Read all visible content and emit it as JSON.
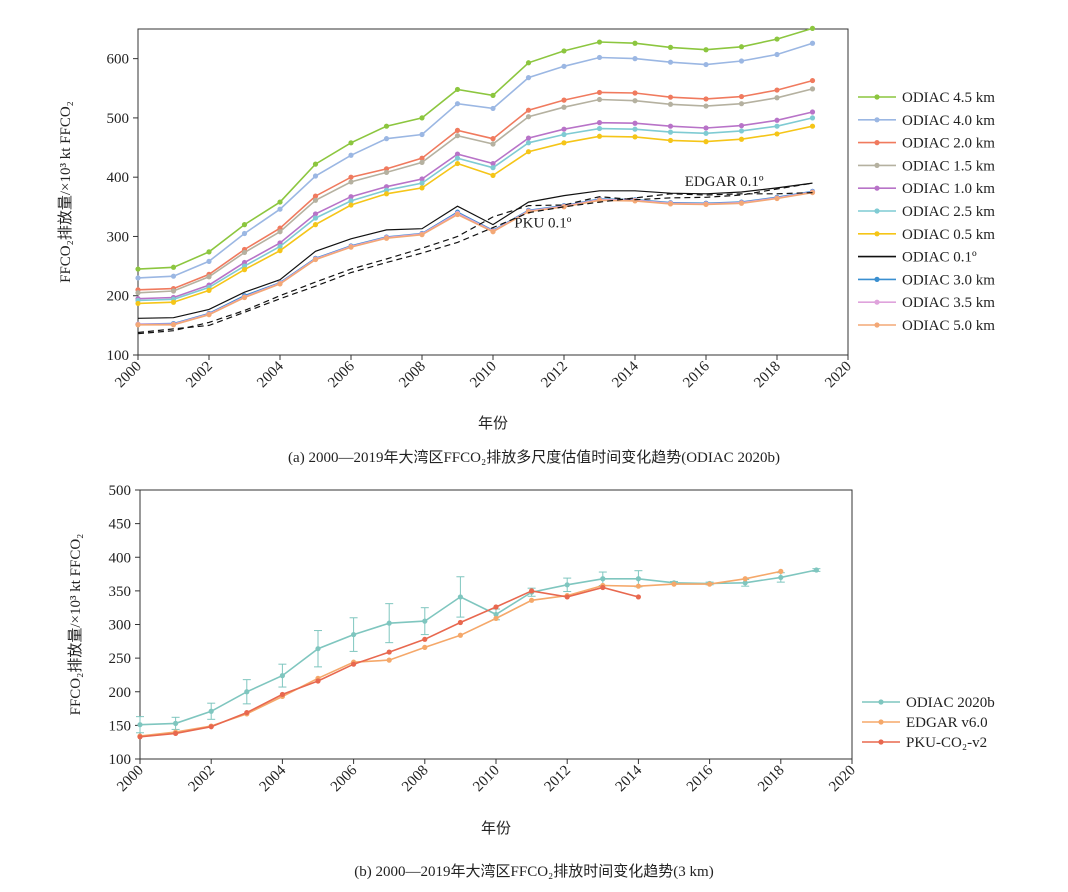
{
  "captions": {
    "a": "(a) 2000—2019年大湾区FFCO₂排放多尺度估值时间变化趋势(ODIAC 2020b)",
    "b": "(b) 2000—2019年大湾区FFCO₂排放时间变化趋势(3 km)"
  },
  "chart_data": [
    {
      "type": "line",
      "xlabel": "年份",
      "ylabel": "FFCO₂排放量/×10³ kt FFCO₂",
      "xlim": [
        2000,
        2020
      ],
      "ylim": [
        100,
        650
      ],
      "xticks": [
        2000,
        2002,
        2004,
        2006,
        2008,
        2010,
        2012,
        2014,
        2016,
        2018,
        2020
      ],
      "yticks": [
        100,
        200,
        300,
        400,
        500,
        600
      ],
      "grid": false,
      "legend_position": "right",
      "annotations": [
        {
          "text": "EDGAR 0.1º",
          "x": 2015.4,
          "y": 385
        },
        {
          "text": "PKU 0.1º",
          "x": 2010.6,
          "y": 315
        }
      ],
      "x": [
        2000,
        2001,
        2002,
        2003,
        2004,
        2005,
        2006,
        2007,
        2008,
        2009,
        2010,
        2011,
        2012,
        2013,
        2014,
        2015,
        2016,
        2017,
        2018,
        2019
      ],
      "series": [
        {
          "name": "ODIAC 4.5 km",
          "color": "#8cc63f",
          "marker": true,
          "values": [
            245,
            248,
            274,
            320,
            358,
            422,
            458,
            486,
            500,
            548,
            538,
            593,
            613,
            628,
            626,
            619,
            615,
            620,
            633,
            651
          ]
        },
        {
          "name": "ODIAC 4.0 km",
          "color": "#9bb7e3",
          "marker": true,
          "values": [
            230,
            233,
            258,
            305,
            346,
            402,
            437,
            465,
            472,
            524,
            516,
            568,
            587,
            602,
            600,
            594,
            590,
            596,
            607,
            626
          ]
        },
        {
          "name": "ODIAC 2.0 km",
          "color": "#f07a5e",
          "marker": true,
          "values": [
            210,
            212,
            236,
            278,
            314,
            368,
            400,
            414,
            432,
            479,
            465,
            513,
            530,
            543,
            542,
            535,
            532,
            536,
            547,
            563
          ]
        },
        {
          "name": "ODIAC 1.5 km",
          "color": "#b5b1a0",
          "marker": true,
          "values": [
            205,
            208,
            232,
            273,
            308,
            361,
            392,
            408,
            425,
            470,
            456,
            502,
            518,
            531,
            529,
            523,
            520,
            524,
            534,
            549
          ]
        },
        {
          "name": "ODIAC 1.0 km",
          "color": "#b873c8",
          "marker": true,
          "values": [
            195,
            197,
            218,
            256,
            289,
            338,
            367,
            384,
            397,
            439,
            423,
            466,
            481,
            492,
            491,
            486,
            483,
            487,
            496,
            510
          ]
        },
        {
          "name": "ODIAC 2.5 km",
          "color": "#7fcbd3",
          "marker": true,
          "values": [
            192,
            194,
            214,
            250,
            283,
            331,
            360,
            378,
            390,
            432,
            416,
            458,
            472,
            482,
            481,
            476,
            474,
            478,
            486,
            500
          ]
        },
        {
          "name": "ODIAC 0.5 km",
          "color": "#f5c518",
          "marker": true,
          "values": [
            187,
            189,
            209,
            244,
            276,
            320,
            353,
            372,
            382,
            423,
            403,
            443,
            458,
            469,
            468,
            462,
            460,
            464,
            473,
            486
          ]
        },
        {
          "name": "ODIAC 0.1º",
          "color": "#111111",
          "marker": false,
          "values": [
            162,
            163,
            177,
            206,
            227,
            275,
            296,
            311,
            313,
            351,
            320,
            358,
            369,
            377,
            377,
            373,
            372,
            375,
            382,
            390
          ]
        },
        {
          "name": "ODIAC 3.0 km",
          "color": "#3a8fd0",
          "marker": true,
          "values": [
            152,
            153,
            170,
            200,
            222,
            263,
            284,
            299,
            305,
            341,
            310,
            344,
            352,
            363,
            362,
            357,
            356,
            358,
            366,
            376
          ]
        },
        {
          "name": "ODIAC 3.5 km",
          "color": "#dfa3dc",
          "marker": true,
          "values": [
            152,
            152,
            169,
            198,
            221,
            262,
            283,
            298,
            304,
            339,
            309,
            343,
            351,
            362,
            361,
            356,
            355,
            357,
            365,
            375
          ]
        },
        {
          "name": "ODIAC 5.0 km",
          "color": "#f3a876",
          "marker": true,
          "values": [
            151,
            151,
            168,
            197,
            220,
            261,
            282,
            297,
            303,
            337,
            308,
            342,
            350,
            361,
            360,
            355,
            354,
            356,
            364,
            374
          ]
        },
        {
          "name": "",
          "color": "#111111",
          "marker": false,
          "dashed": true,
          "values": [
            136,
            141,
            155,
            175,
            200,
            223,
            245,
            262,
            280,
            300,
            333,
            352,
            353,
            367,
            362,
            365,
            366,
            370,
            380,
            390
          ]
        },
        {
          "name": "",
          "color": "#111111",
          "marker": false,
          "dashed": true,
          "values": [
            138,
            144,
            150,
            172,
            195,
            216,
            239,
            256,
            272,
            290,
            315,
            340,
            350,
            358,
            365,
            372,
            370,
            372,
            372,
            374
          ]
        }
      ]
    },
    {
      "type": "line",
      "xlabel": "年份",
      "ylabel": "FFCO₂排放量/×10³ kt FFCO₂",
      "xlim": [
        2000,
        2020
      ],
      "ylim": [
        100,
        500
      ],
      "xticks": [
        2000,
        2002,
        2004,
        2006,
        2008,
        2010,
        2012,
        2014,
        2016,
        2018,
        2020
      ],
      "yticks": [
        100,
        150,
        200,
        250,
        300,
        350,
        400,
        450,
        500
      ],
      "grid": false,
      "legend_position": "right",
      "series": [
        {
          "name": "ODIAC 2020b",
          "color": "#7fc6bf",
          "marker": true,
          "x": [
            2000,
            2001,
            2002,
            2003,
            2004,
            2005,
            2006,
            2007,
            2008,
            2009,
            2010,
            2011,
            2012,
            2013,
            2014,
            2015,
            2016,
            2017,
            2018,
            2019
          ],
          "values": [
            151,
            153,
            171,
            200,
            224,
            264,
            285,
            302,
            305,
            341,
            315,
            348,
            359,
            368,
            368,
            362,
            361,
            362,
            370,
            381
          ],
          "error": [
            12,
            9,
            12,
            18,
            17,
            27,
            25,
            29,
            20,
            30,
            8,
            6,
            10,
            10,
            12,
            2,
            2,
            5,
            7,
            2
          ]
        },
        {
          "name": "EDGAR v6.0",
          "color": "#f5a86a",
          "marker": true,
          "x": [
            2000,
            2001,
            2002,
            2003,
            2004,
            2005,
            2006,
            2007,
            2008,
            2009,
            2010,
            2011,
            2012,
            2013,
            2014,
            2015,
            2016,
            2017,
            2018
          ],
          "values": [
            134,
            140,
            149,
            167,
            193,
            220,
            244,
            247,
            266,
            284,
            309,
            336,
            343,
            358,
            357,
            360,
            360,
            368,
            379
          ]
        },
        {
          "name": "PKU-CO₂-v2",
          "color": "#e8684f",
          "marker": true,
          "x": [
            2000,
            2001,
            2002,
            2003,
            2004,
            2005,
            2006,
            2007,
            2008,
            2009,
            2010,
            2011,
            2012,
            2013,
            2014
          ],
          "values": [
            133,
            138,
            148,
            169,
            196,
            216,
            241,
            259,
            278,
            303,
            326,
            350,
            341,
            355,
            341
          ]
        }
      ]
    }
  ]
}
